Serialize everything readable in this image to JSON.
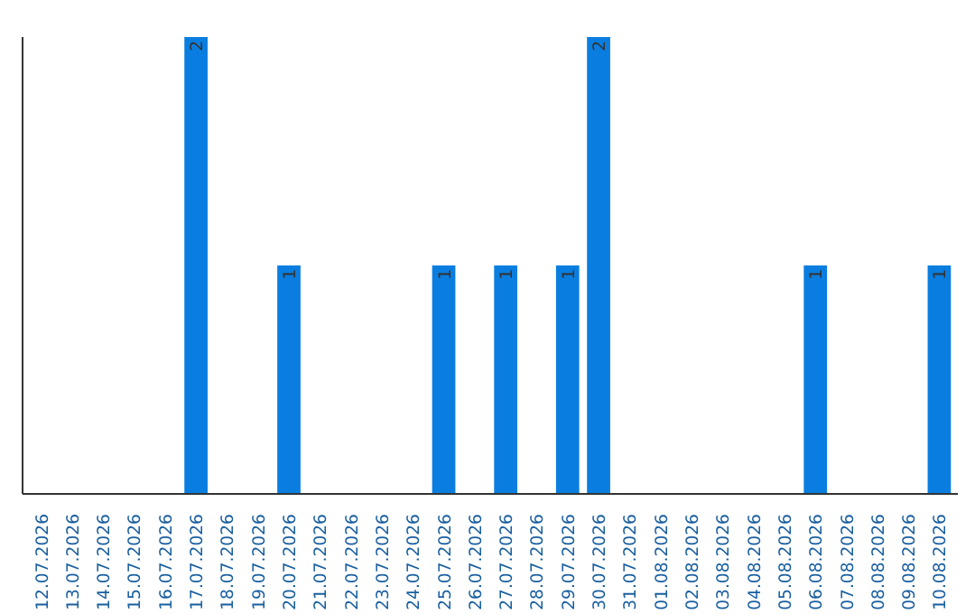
{
  "chart_data": {
    "type": "bar",
    "categories": [
      "12.07.2026",
      "13.07.2026",
      "14.07.2026",
      "15.07.2026",
      "16.07.2026",
      "17.07.2026",
      "18.07.2026",
      "19.07.2026",
      "20.07.2026",
      "21.07.2026",
      "22.07.2026",
      "23.07.2026",
      "24.07.2026",
      "25.07.2026",
      "26.07.2026",
      "27.07.2026",
      "28.07.2026",
      "29.07.2026",
      "30.07.2026",
      "31.07.2026",
      "01.08.2026",
      "02.08.2026",
      "03.08.2026",
      "04.08.2026",
      "05.08.2026",
      "06.08.2026",
      "07.08.2026",
      "08.08.2026",
      "09.08.2026",
      "10.08.2026"
    ],
    "values": [
      0,
      0,
      0,
      0,
      0,
      2,
      0,
      0,
      1,
      0,
      0,
      0,
      0,
      1,
      0,
      1,
      0,
      1,
      2,
      0,
      0,
      0,
      0,
      0,
      0,
      1,
      0,
      0,
      0,
      1
    ],
    "value_labels": [
      null,
      null,
      null,
      null,
      null,
      "2",
      null,
      null,
      "1",
      null,
      null,
      null,
      null,
      "1",
      null,
      "1",
      null,
      "1",
      "2",
      null,
      null,
      null,
      null,
      null,
      null,
      "1",
      null,
      null,
      null,
      "1"
    ],
    "color": "#0a7ee0",
    "grid": false
  }
}
